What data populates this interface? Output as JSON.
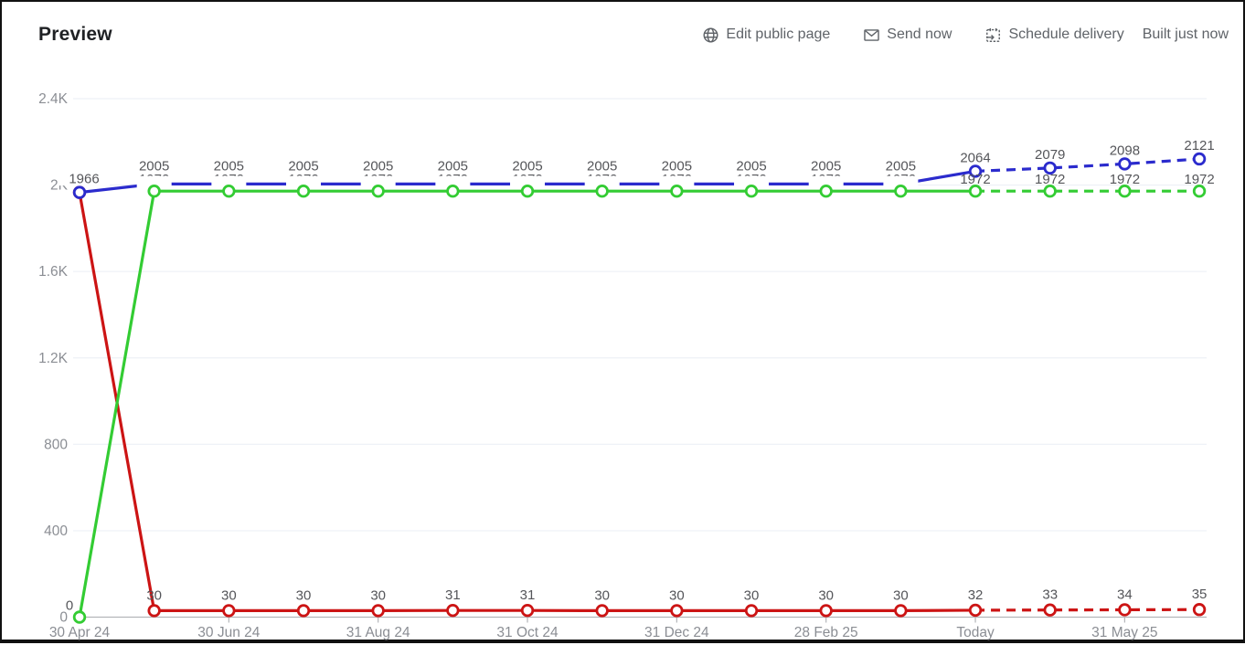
{
  "header": {
    "title": "Preview",
    "actions": [
      {
        "id": "edit-public-page",
        "label": "Edit public page",
        "icon": "globe-icon"
      },
      {
        "id": "send-now",
        "label": "Send now",
        "icon": "envelope-icon"
      },
      {
        "id": "schedule-delivery",
        "label": "Schedule delivery",
        "icon": "calendar-send-icon"
      }
    ],
    "status": "Built just now"
  },
  "chart_data": {
    "type": "line",
    "n_points": 16,
    "ylim": [
      0,
      2400
    ],
    "grid": "horizontal",
    "forecast_start_index": 12,
    "y_ticks": [
      {
        "v": 0,
        "label": "0"
      },
      {
        "v": 400,
        "label": "400"
      },
      {
        "v": 800,
        "label": "800"
      },
      {
        "v": 1200,
        "label": "1.2K"
      },
      {
        "v": 1600,
        "label": "1.6K"
      },
      {
        "v": 2000,
        "label": "2K"
      },
      {
        "v": 2400,
        "label": "2.4K"
      }
    ],
    "x_ticks": [
      {
        "i": 0,
        "label": "30 Apr 24"
      },
      {
        "i": 2,
        "label": "30 Jun 24"
      },
      {
        "i": 4,
        "label": "31 Aug 24"
      },
      {
        "i": 6,
        "label": "31 Oct 24"
      },
      {
        "i": 8,
        "label": "31 Dec 24"
      },
      {
        "i": 10,
        "label": "28 Feb 25"
      },
      {
        "i": 12,
        "label": "Today"
      },
      {
        "i": 14,
        "label": "31 May 25"
      }
    ],
    "series": [
      {
        "name": "red",
        "color": "#cc1414",
        "solid_until": 12,
        "values": [
          1966,
          30,
          30,
          30,
          30,
          31,
          31,
          30,
          30,
          30,
          30,
          30,
          32,
          33,
          34,
          35
        ],
        "labels": [
          "",
          "30",
          "30",
          "30",
          "30",
          "31",
          "31",
          "30",
          "30",
          "30",
          "30",
          "30",
          "32",
          "33",
          "34",
          "35"
        ]
      },
      {
        "name": "blue",
        "color": "#2b2bcd",
        "solid_until": 12,
        "values": [
          1966,
          2005,
          2005,
          2005,
          2005,
          2005,
          2005,
          2005,
          2005,
          2005,
          2005,
          2005,
          2064,
          2079,
          2098,
          2121
        ],
        "labels": [
          "1966",
          "2005",
          "2005",
          "2005",
          "2005",
          "2005",
          "2005",
          "2005",
          "2005",
          "2005",
          "2005",
          "2005",
          "2064",
          "2079",
          "2098",
          "2121"
        ]
      },
      {
        "name": "green",
        "color": "#33cc33",
        "solid_until": 12,
        "values": [
          0,
          1972,
          1972,
          1972,
          1972,
          1972,
          1972,
          1972,
          1972,
          1972,
          1972,
          1972,
          1972,
          1972,
          1972,
          1972
        ],
        "labels": [
          "0",
          "1972",
          "1972",
          "1972",
          "1972",
          "1972",
          "1972",
          "1972",
          "1972",
          "1972",
          "1972",
          "1972",
          "1972",
          "1972",
          "1972",
          "1972"
        ]
      }
    ],
    "style": {
      "label_color": "#55565a",
      "axis_text_color": "#8b8e94",
      "grid_color": "#edf0f6",
      "axis_line_color": "#b3b5b9"
    }
  }
}
